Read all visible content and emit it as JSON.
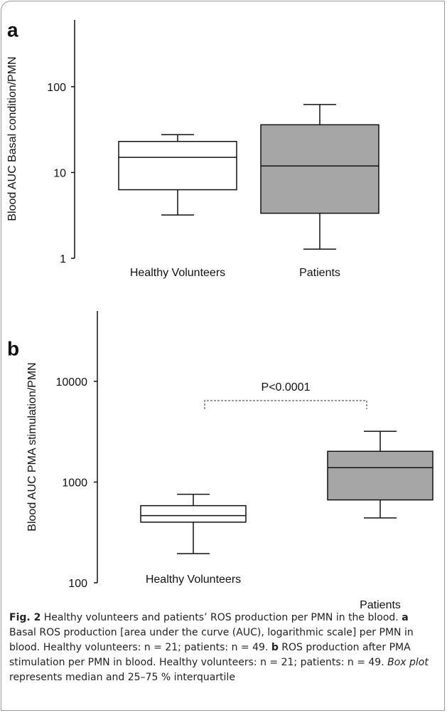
{
  "chart_data": [
    {
      "type": "box",
      "panel": "a",
      "ylabel": "Blood AUC Basal condition/PMN",
      "log": true,
      "ylim": [
        1,
        600
      ],
      "yticks": [
        1,
        10,
        100
      ],
      "categories": [
        "Healthy Volunteers",
        "Patients"
      ],
      "colors": [
        "#ffffff",
        "#a6a6a6"
      ],
      "boxes": [
        {
          "min": 3.2,
          "q1": 6.3,
          "median": 15,
          "q3": 23,
          "max": 27.6
        },
        {
          "min": 1.28,
          "q1": 3.35,
          "median": 11.9,
          "q3": 36,
          "max": 62
        }
      ]
    },
    {
      "type": "box",
      "panel": "b",
      "ylabel": "Blood AUC PMA stimulation/PMN",
      "log": true,
      "ylim": [
        100,
        50000
      ],
      "yticks": [
        100,
        1000,
        10000
      ],
      "categories": [
        "Healthy Volunteers",
        "Patients"
      ],
      "colors": [
        "#ffffff",
        "#a6a6a6"
      ],
      "annotation": "P<0.0001",
      "boxes": [
        {
          "min": 195,
          "q1": 400,
          "median": 464,
          "q3": 583,
          "max": 757
        },
        {
          "min": 440,
          "q1": 665,
          "median": 1390,
          "q3": 2020,
          "max": 3190
        }
      ]
    }
  ],
  "caption": [
    {
      "text": "Fig. 2",
      "style": "bold"
    },
    {
      "text": " Healthy volunteers and patients’ ROS production per PMN in the blood. ",
      "style": "normal"
    },
    {
      "text": "a",
      "style": "bold"
    },
    {
      "text": " Basal ROS production [area under the curve (AUC), logarithmic scale] per PMN in blood. Healthy volunteers: n = 21; patients: n = 49. ",
      "style": "normal"
    },
    {
      "text": "b",
      "style": "bold"
    },
    {
      "text": " ROS production after PMA stimulation per PMN in blood. Healthy volunteers: n = 21; patients: n = 49. ",
      "style": "normal"
    },
    {
      "text": "Box plot",
      "style": "italic"
    },
    {
      "text": " represents median and 25–75 % interquartile",
      "style": "normal"
    }
  ]
}
